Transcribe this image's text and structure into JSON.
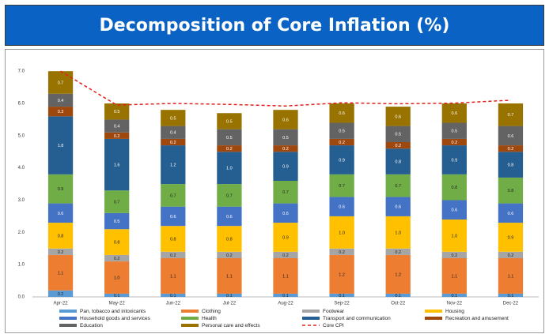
{
  "chart_data": {
    "type": "bar",
    "stacked": true,
    "title": "Decomposition of Core Inflation (%)",
    "categories": [
      "Apr-22",
      "May-22",
      "Jun-22",
      "Jul-22",
      "Aug-22",
      "Sep-22",
      "Oct-22",
      "Nov-22",
      "Dec-22"
    ],
    "ylim": [
      0,
      7.2
    ],
    "yticks": [
      {
        "value": 0,
        "label": "0.0"
      },
      {
        "value": 1,
        "label": "1.0"
      },
      {
        "value": 2,
        "label": "2.0"
      },
      {
        "value": 3,
        "label": "3.0"
      },
      {
        "value": 4,
        "label": "4.0"
      },
      {
        "value": 5,
        "label": "5.0"
      },
      {
        "value": 6,
        "label": "6.0"
      },
      {
        "value": 7,
        "label": "7.0"
      }
    ],
    "grid": false,
    "series": [
      {
        "name": "Pan, tobacco and intoxicants",
        "color": "#5b9bd5",
        "values": [
          0.2,
          0.1,
          0.1,
          0.1,
          0.1,
          0.1,
          0.1,
          0.1,
          0.1
        ],
        "value_labels": [
          "0.2",
          "0.1",
          "0.1",
          "0.1",
          "0.1",
          "0.1",
          "0.1",
          "0.1",
          "0.1"
        ]
      },
      {
        "name": "Clothing",
        "color": "#ed7d31",
        "values": [
          1.1,
          1,
          1.1,
          1.1,
          1.1,
          1.2,
          1.2,
          1.1,
          1.1
        ],
        "value_labels": [
          "1.1",
          "1.0",
          "1.1",
          "1.1",
          "1.1",
          "1.2",
          "1.2",
          "1.1",
          "1.1"
        ]
      },
      {
        "name": "Footwear",
        "color": "#a5a5a5",
        "values": [
          0.2,
          0.2,
          0.2,
          0.2,
          0.2,
          0.2,
          0.2,
          0.2,
          0.2
        ],
        "value_labels": [
          "0.2",
          "0.2",
          "0.2",
          "0.2",
          "0.2",
          "0.2",
          "0.2",
          "0.2",
          "0.2"
        ]
      },
      {
        "name": "Housing",
        "color": "#ffc000",
        "values": [
          0.8,
          0.8,
          0.8,
          0.8,
          0.9,
          1,
          1,
          1,
          0.9
        ],
        "value_labels": [
          "0.8",
          "0.8",
          "0.8",
          "0.8",
          "0.9",
          "1.0",
          "1.0",
          "1.0",
          "0.9"
        ]
      },
      {
        "name": "Household goods and services",
        "color": "#4472c4",
        "values": [
          0.6,
          0.5,
          0.6,
          0.6,
          0.6,
          0.6,
          0.6,
          0.6,
          0.6
        ],
        "value_labels": [
          "0.6",
          "0.5",
          "0.6",
          "0.6",
          "0.6",
          "0.6",
          "0.6",
          "0.6",
          "0.6"
        ]
      },
      {
        "name": "Health",
        "color": "#70ad47",
        "values": [
          0.9,
          0.7,
          0.7,
          0.7,
          0.7,
          0.7,
          0.7,
          0.8,
          0.8
        ],
        "value_labels": [
          "0.9",
          "0.7",
          "0.7",
          "0.7",
          "0.7",
          "0.7",
          "0.7",
          "0.8",
          "0.8"
        ]
      },
      {
        "name": "Transport and communication",
        "color": "#255e91",
        "values": [
          1.8,
          1.6,
          1.2,
          1,
          0.9,
          0.9,
          0.8,
          0.9,
          0.8
        ],
        "value_labels": [
          "1.8",
          "1.6",
          "1.2",
          "1.0",
          "0.9",
          "0.9",
          "0.8",
          "0.9",
          "0.8"
        ]
      },
      {
        "name": "Recreation and amusement",
        "color": "#9e480e",
        "values": [
          0.3,
          0.2,
          0.2,
          0.2,
          0.2,
          0.2,
          0.2,
          0.2,
          0.2
        ],
        "value_labels": [
          "0.3",
          "0.2",
          "0.2",
          "0.2",
          "0.2",
          "0.2",
          "0.2",
          "0.2",
          "0.2"
        ]
      },
      {
        "name": "Education",
        "color": "#636363",
        "values": [
          0.4,
          0.4,
          0.4,
          0.5,
          0.5,
          0.5,
          0.5,
          0.5,
          0.6
        ],
        "value_labels": [
          "0.4",
          "0.4",
          "0.4",
          "0.5",
          "0.5",
          "0.5",
          "0.5",
          "0.5",
          "0.6"
        ]
      },
      {
        "name": "Personal care and effects",
        "color": "#997300",
        "values": [
          0.7,
          0.5,
          0.5,
          0.5,
          0.6,
          0.6,
          0.6,
          0.6,
          0.7
        ],
        "value_labels": [
          "0.7",
          "0.5",
          "0.5",
          "0.5",
          "0.6",
          "0.6",
          "0.6",
          "0.6",
          "0.7"
        ]
      },
      {
        "name": "Core CPI",
        "color": "#e0201c",
        "type": "line",
        "dashed": true,
        "values": [
          7.0,
          5.95,
          6.0,
          5.97,
          5.92,
          6.02,
          5.99,
          6.01,
          6.1
        ]
      }
    ]
  }
}
